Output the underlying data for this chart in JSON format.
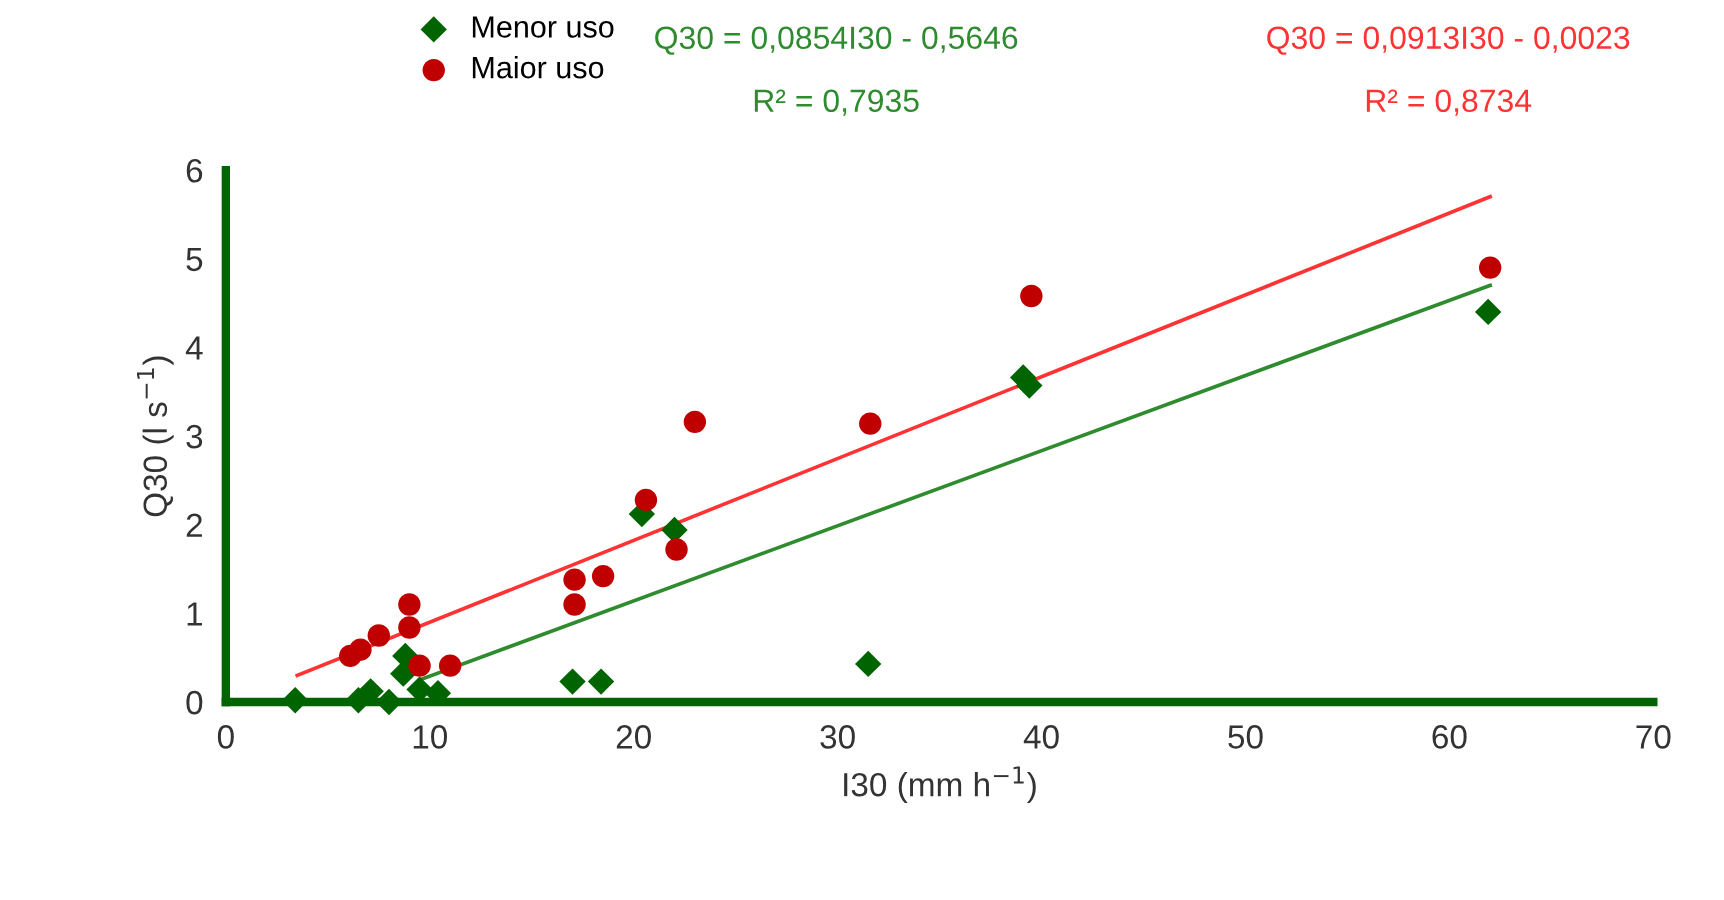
{
  "chart_data": {
    "type": "scatter",
    "xlabel": "I30 (mm h$^{−1}$)",
    "ylabel": "Q30 (l s$^{−1}$)",
    "xlim": [
      0,
      70
    ],
    "xticks": [
      0,
      10,
      20,
      30,
      40,
      50,
      60,
      70
    ],
    "ylim": [
      0,
      6
    ],
    "yticks": [
      0,
      1,
      2,
      3,
      4,
      5,
      6
    ],
    "grid": false,
    "legend": "top left",
    "annotations": [
      "Q30 = 0,0854I30 - 0,5646",
      "R² = 0,7935",
      "Q30 = 0,0913I30 - 0,0023",
      "R² = 0,8734"
    ],
    "series": [
      {
        "name": "Menor uso",
        "color": "#006400",
        "marker": "diamond",
        "x": [
          3.4,
          6.5,
          7.1,
          8.0,
          8.8,
          8.7,
          9.5,
          10.4,
          17.0,
          18.4,
          20.4,
          22.0,
          31.5,
          39.1,
          39.4,
          61.9
        ],
        "values": [
          0.02,
          0.02,
          0.12,
          0.0,
          0.52,
          0.32,
          0.14,
          0.1,
          0.23,
          0.23,
          2.12,
          1.94,
          0.43,
          3.66,
          3.57,
          4.4
        ]
      },
      {
        "name": "Maior uso",
        "color": "#c00000",
        "marker": "circle",
        "x": [
          6.1,
          6.6,
          7.5,
          9.0,
          9.0,
          9.5,
          11.0,
          17.1,
          17.1,
          18.5,
          20.6,
          22.1,
          23.0,
          31.6,
          39.5,
          62.0
        ],
        "values": [
          0.52,
          0.59,
          0.75,
          1.1,
          0.84,
          0.41,
          0.41,
          1.38,
          1.1,
          1.42,
          2.28,
          1.72,
          3.16,
          3.14,
          4.58,
          4.9
        ]
      },
      {
        "type": "line",
        "color": "#2e8b2e",
        "x": [
          9.5,
          62
        ],
        "values": [
          0.25,
          4.7
        ]
      },
      {
        "type": "line",
        "color": "#ff3333",
        "x": [
          3.5,
          62
        ],
        "values": [
          0.3,
          5.7
        ]
      }
    ]
  }
}
